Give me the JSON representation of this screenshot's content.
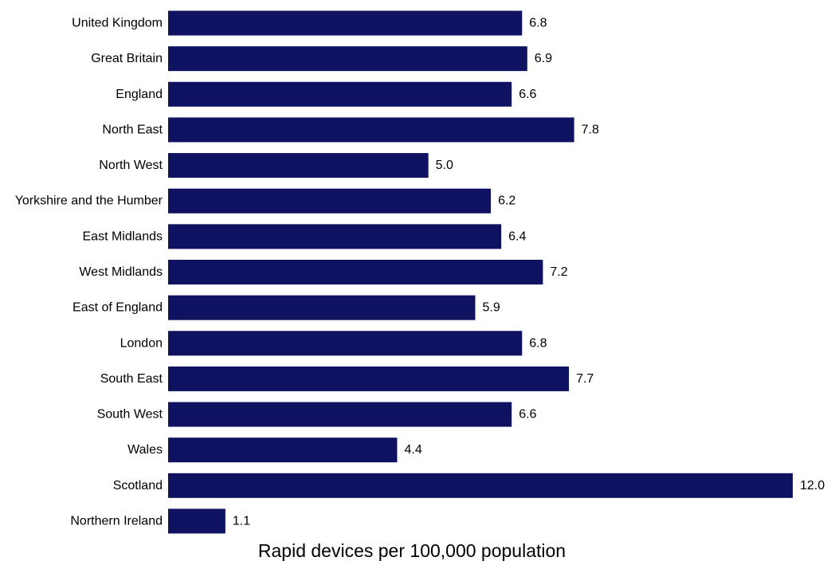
{
  "chart_data": {
    "type": "bar",
    "orientation": "horizontal",
    "title": "",
    "xlabel": "Rapid devices per 100,000 population",
    "ylabel": "",
    "xlim": [
      0,
      12
    ],
    "grid": false,
    "bar_color": "#0e1261",
    "categories": [
      "United Kingdom",
      "Great Britain",
      "England",
      "North East",
      "North West",
      "Yorkshire and the Humber",
      "East Midlands",
      "West Midlands",
      "East of England",
      "London",
      "South East",
      "South West",
      "Wales",
      "Scotland",
      "Northern Ireland"
    ],
    "values": [
      6.8,
      6.9,
      6.6,
      7.8,
      5.0,
      6.2,
      6.4,
      7.2,
      5.9,
      6.8,
      7.7,
      6.6,
      4.4,
      12.0,
      1.1
    ],
    "value_labels": [
      "6.8",
      "6.9",
      "6.6",
      "7.8",
      "5.0",
      "6.2",
      "6.4",
      "7.2",
      "5.9",
      "6.8",
      "7.7",
      "6.6",
      "4.4",
      "12.0",
      "1.1"
    ]
  }
}
